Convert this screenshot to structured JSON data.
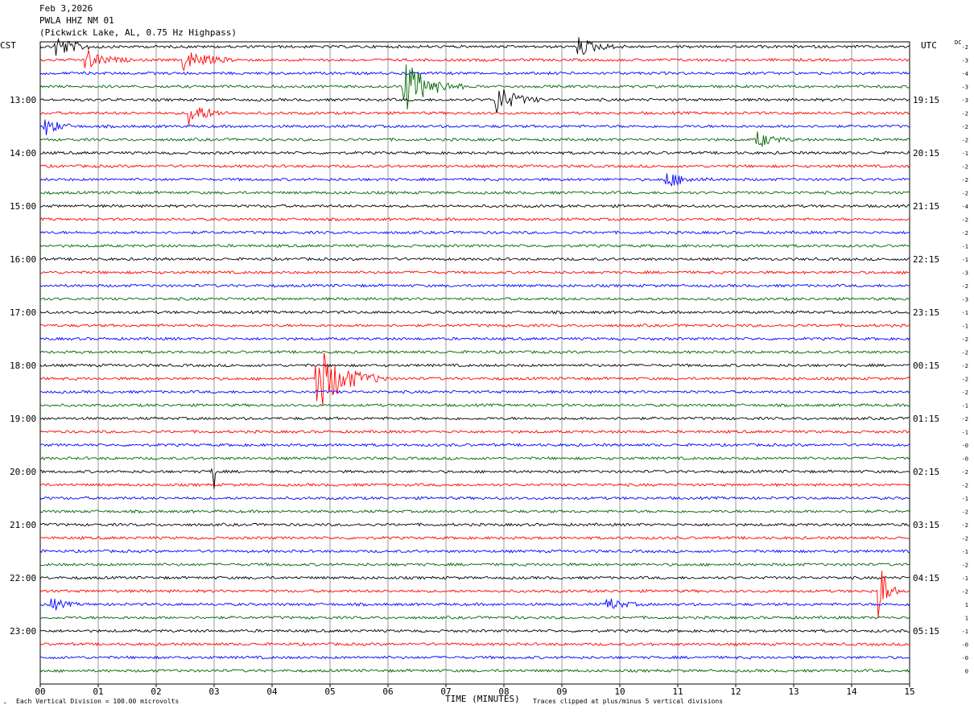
{
  "header": {
    "date": "Feb 3,2026",
    "station": "PWLA HHZ NM 01",
    "location": "(Pickwick Lake, AL, 0.75 Hz Highpass)"
  },
  "labels": {
    "left_tz": "CST",
    "right_tz": "UTC",
    "dc": "DC",
    "corner_mark": "⌄"
  },
  "footer": {
    "scale_note": "Each Vertical Division =  100.00 microvolts",
    "xlabel": "TIME (MINUTES)",
    "clip_note": "Traces clipped at plus/minus 5 vertical divisions"
  },
  "colors": {
    "trace_cycle": [
      "#000000",
      "#ff0000",
      "#0000ff",
      "#006600"
    ],
    "grid": "#808080"
  },
  "chart_data": {
    "type": "line",
    "title": "",
    "xlabel": "TIME (MINUTES)",
    "xlim": [
      0,
      15
    ],
    "x_ticks": [
      "00",
      "01",
      "02",
      "03",
      "04",
      "05",
      "06",
      "07",
      "08",
      "09",
      "10",
      "11",
      "12",
      "13",
      "14",
      "15"
    ],
    "trace_count": 48,
    "minutes_per_trace": 15,
    "left_hour_labels": [
      "13:00",
      "14:00",
      "15:00",
      "16:00",
      "17:00",
      "18:00",
      "19:00",
      "20:00",
      "21:00",
      "22:00",
      "23:00"
    ],
    "right_hour_labels": [
      "19:15",
      "20:15",
      "21:15",
      "22:15",
      "23:15",
      "00:15",
      "01:15",
      "02:15",
      "03:15",
      "04:15",
      "05:15"
    ],
    "dc_offsets": [
      "-2",
      "-3",
      "-4",
      "-3",
      "-3",
      "-2",
      "-2",
      "-2",
      "-1",
      "-2",
      "-2",
      "-2",
      "-4",
      "-2",
      "-2",
      "-1",
      "-1",
      "-3",
      "-2",
      "-3",
      "-1",
      "-1",
      "-2",
      "-2",
      "-2",
      "-2",
      "-2",
      "-1",
      "-2",
      "-1",
      "-0",
      "-0",
      "-2",
      "-2",
      "-1",
      "-2",
      "-2",
      "-2",
      "-1",
      "-2",
      "-1",
      "-2",
      "1",
      "1",
      "-1",
      "-0",
      "-0",
      "0"
    ],
    "events": [
      {
        "trace": 0,
        "minute": 0.3,
        "amp": 1.6,
        "dur": 0.8
      },
      {
        "trace": 0,
        "minute": 9.3,
        "amp": 1.4,
        "dur": 0.8
      },
      {
        "trace": 1,
        "minute": 0.8,
        "amp": 1.5,
        "dur": 0.8
      },
      {
        "trace": 1,
        "minute": 2.5,
        "amp": 1.6,
        "dur": 1.0
      },
      {
        "trace": 3,
        "minute": 6.3,
        "amp": 4.0,
        "dur": 1.0
      },
      {
        "trace": 4,
        "minute": 7.9,
        "amp": 2.2,
        "dur": 0.8
      },
      {
        "trace": 5,
        "minute": 2.6,
        "amp": 1.8,
        "dur": 0.7
      },
      {
        "trace": 6,
        "minute": 0.1,
        "amp": 1.3,
        "dur": 0.6
      },
      {
        "trace": 7,
        "minute": 12.4,
        "amp": 1.2,
        "dur": 0.6
      },
      {
        "trace": 10,
        "minute": 10.8,
        "amp": 1.3,
        "dur": 0.8
      },
      {
        "trace": 25,
        "minute": 4.8,
        "amp": 5.0,
        "dur": 1.2
      },
      {
        "trace": 32,
        "minute": 3.0,
        "amp": 2.5,
        "dur": 0.05
      },
      {
        "trace": 41,
        "minute": 14.5,
        "amp": 5.0,
        "dur": 0.3
      },
      {
        "trace": 42,
        "minute": 0.2,
        "amp": 1.0,
        "dur": 0.5
      },
      {
        "trace": 42,
        "minute": 9.8,
        "amp": 1.0,
        "dur": 0.6
      }
    ]
  }
}
